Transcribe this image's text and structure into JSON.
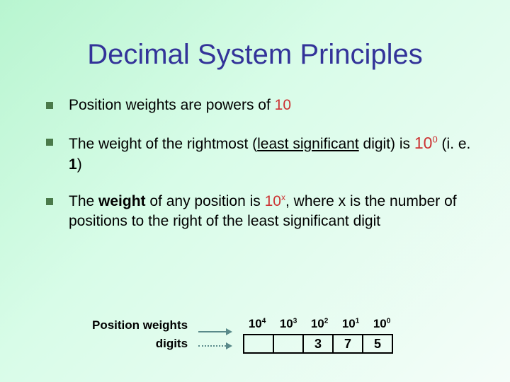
{
  "title": "Decimal System Principles",
  "bullets": [
    {
      "pre": "Position weights are powers of ",
      "accent": "10",
      "post": ""
    },
    {
      "pre": "The weight of the rightmost (",
      "mid_u": "least significant",
      "mid2": " digit) is ",
      "pow_base": "10",
      "pow_exp": "0",
      "post": " (i. e. ",
      "one": "1",
      "post2": ")"
    },
    {
      "pre": "The ",
      "weight": "weight",
      "mid": " of any position is ",
      "pow_base": "10",
      "pow_exp": "x",
      "post": ", where x is the number of positions to the right of the least significant digit"
    }
  ],
  "diagram": {
    "label_weights": "Position weights",
    "label_digits": "digits",
    "weights": [
      {
        "base": "10",
        "exp": "4"
      },
      {
        "base": "10",
        "exp": "3"
      },
      {
        "base": "10",
        "exp": "2"
      },
      {
        "base": "10",
        "exp": "1"
      },
      {
        "base": "10",
        "exp": "0"
      }
    ],
    "digits": [
      "",
      "",
      "3",
      "7",
      "5"
    ]
  },
  "colors": {
    "title": "#333399",
    "accent": "#cc3333",
    "bullet_marker": "#4a7a4a",
    "arrow": "#5a8a8a"
  }
}
